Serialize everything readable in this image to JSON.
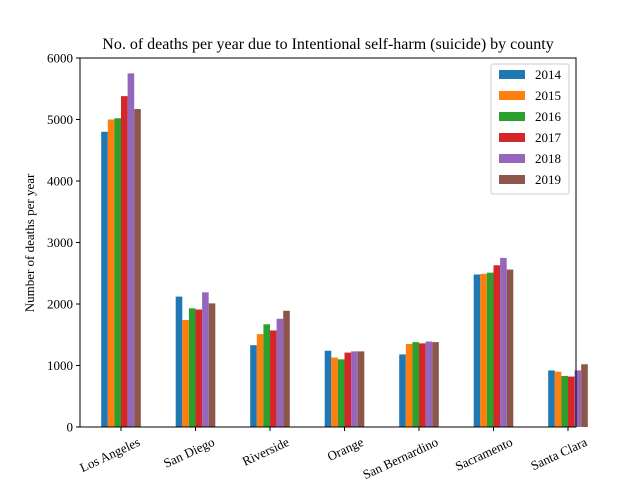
{
  "chart_data": {
    "type": "bar",
    "title": "No. of deaths per year due to Intentional self-harm (suicide) by county",
    "xlabel": "",
    "ylabel": "Number of deaths per year",
    "ylim": [
      0,
      6000
    ],
    "yticks": [
      0,
      1000,
      2000,
      3000,
      4000,
      5000,
      6000
    ],
    "grid": false,
    "legend_position": "top-right",
    "categories": [
      "Los Angeles",
      "San Diego",
      "Riverside",
      "Orange",
      "San Bernardino",
      "Sacramento",
      "Santa Clara"
    ],
    "series": [
      {
        "name": "2014",
        "color": "#1f77b4",
        "values": [
          4800,
          2120,
          1330,
          1240,
          1180,
          2480,
          920
        ]
      },
      {
        "name": "2015",
        "color": "#ff7f0e",
        "values": [
          5000,
          1740,
          1510,
          1130,
          1350,
          2490,
          900
        ]
      },
      {
        "name": "2016",
        "color": "#2ca02c",
        "values": [
          5020,
          1930,
          1670,
          1100,
          1380,
          2510,
          830
        ]
      },
      {
        "name": "2017",
        "color": "#d62728",
        "values": [
          5380,
          1910,
          1570,
          1210,
          1360,
          2630,
          820
        ]
      },
      {
        "name": "2018",
        "color": "#9467bd",
        "values": [
          5750,
          2190,
          1760,
          1230,
          1390,
          2750,
          920
        ]
      },
      {
        "name": "2019",
        "color": "#8c564b",
        "values": [
          5170,
          2010,
          1890,
          1230,
          1380,
          2560,
          1020
        ]
      }
    ]
  }
}
